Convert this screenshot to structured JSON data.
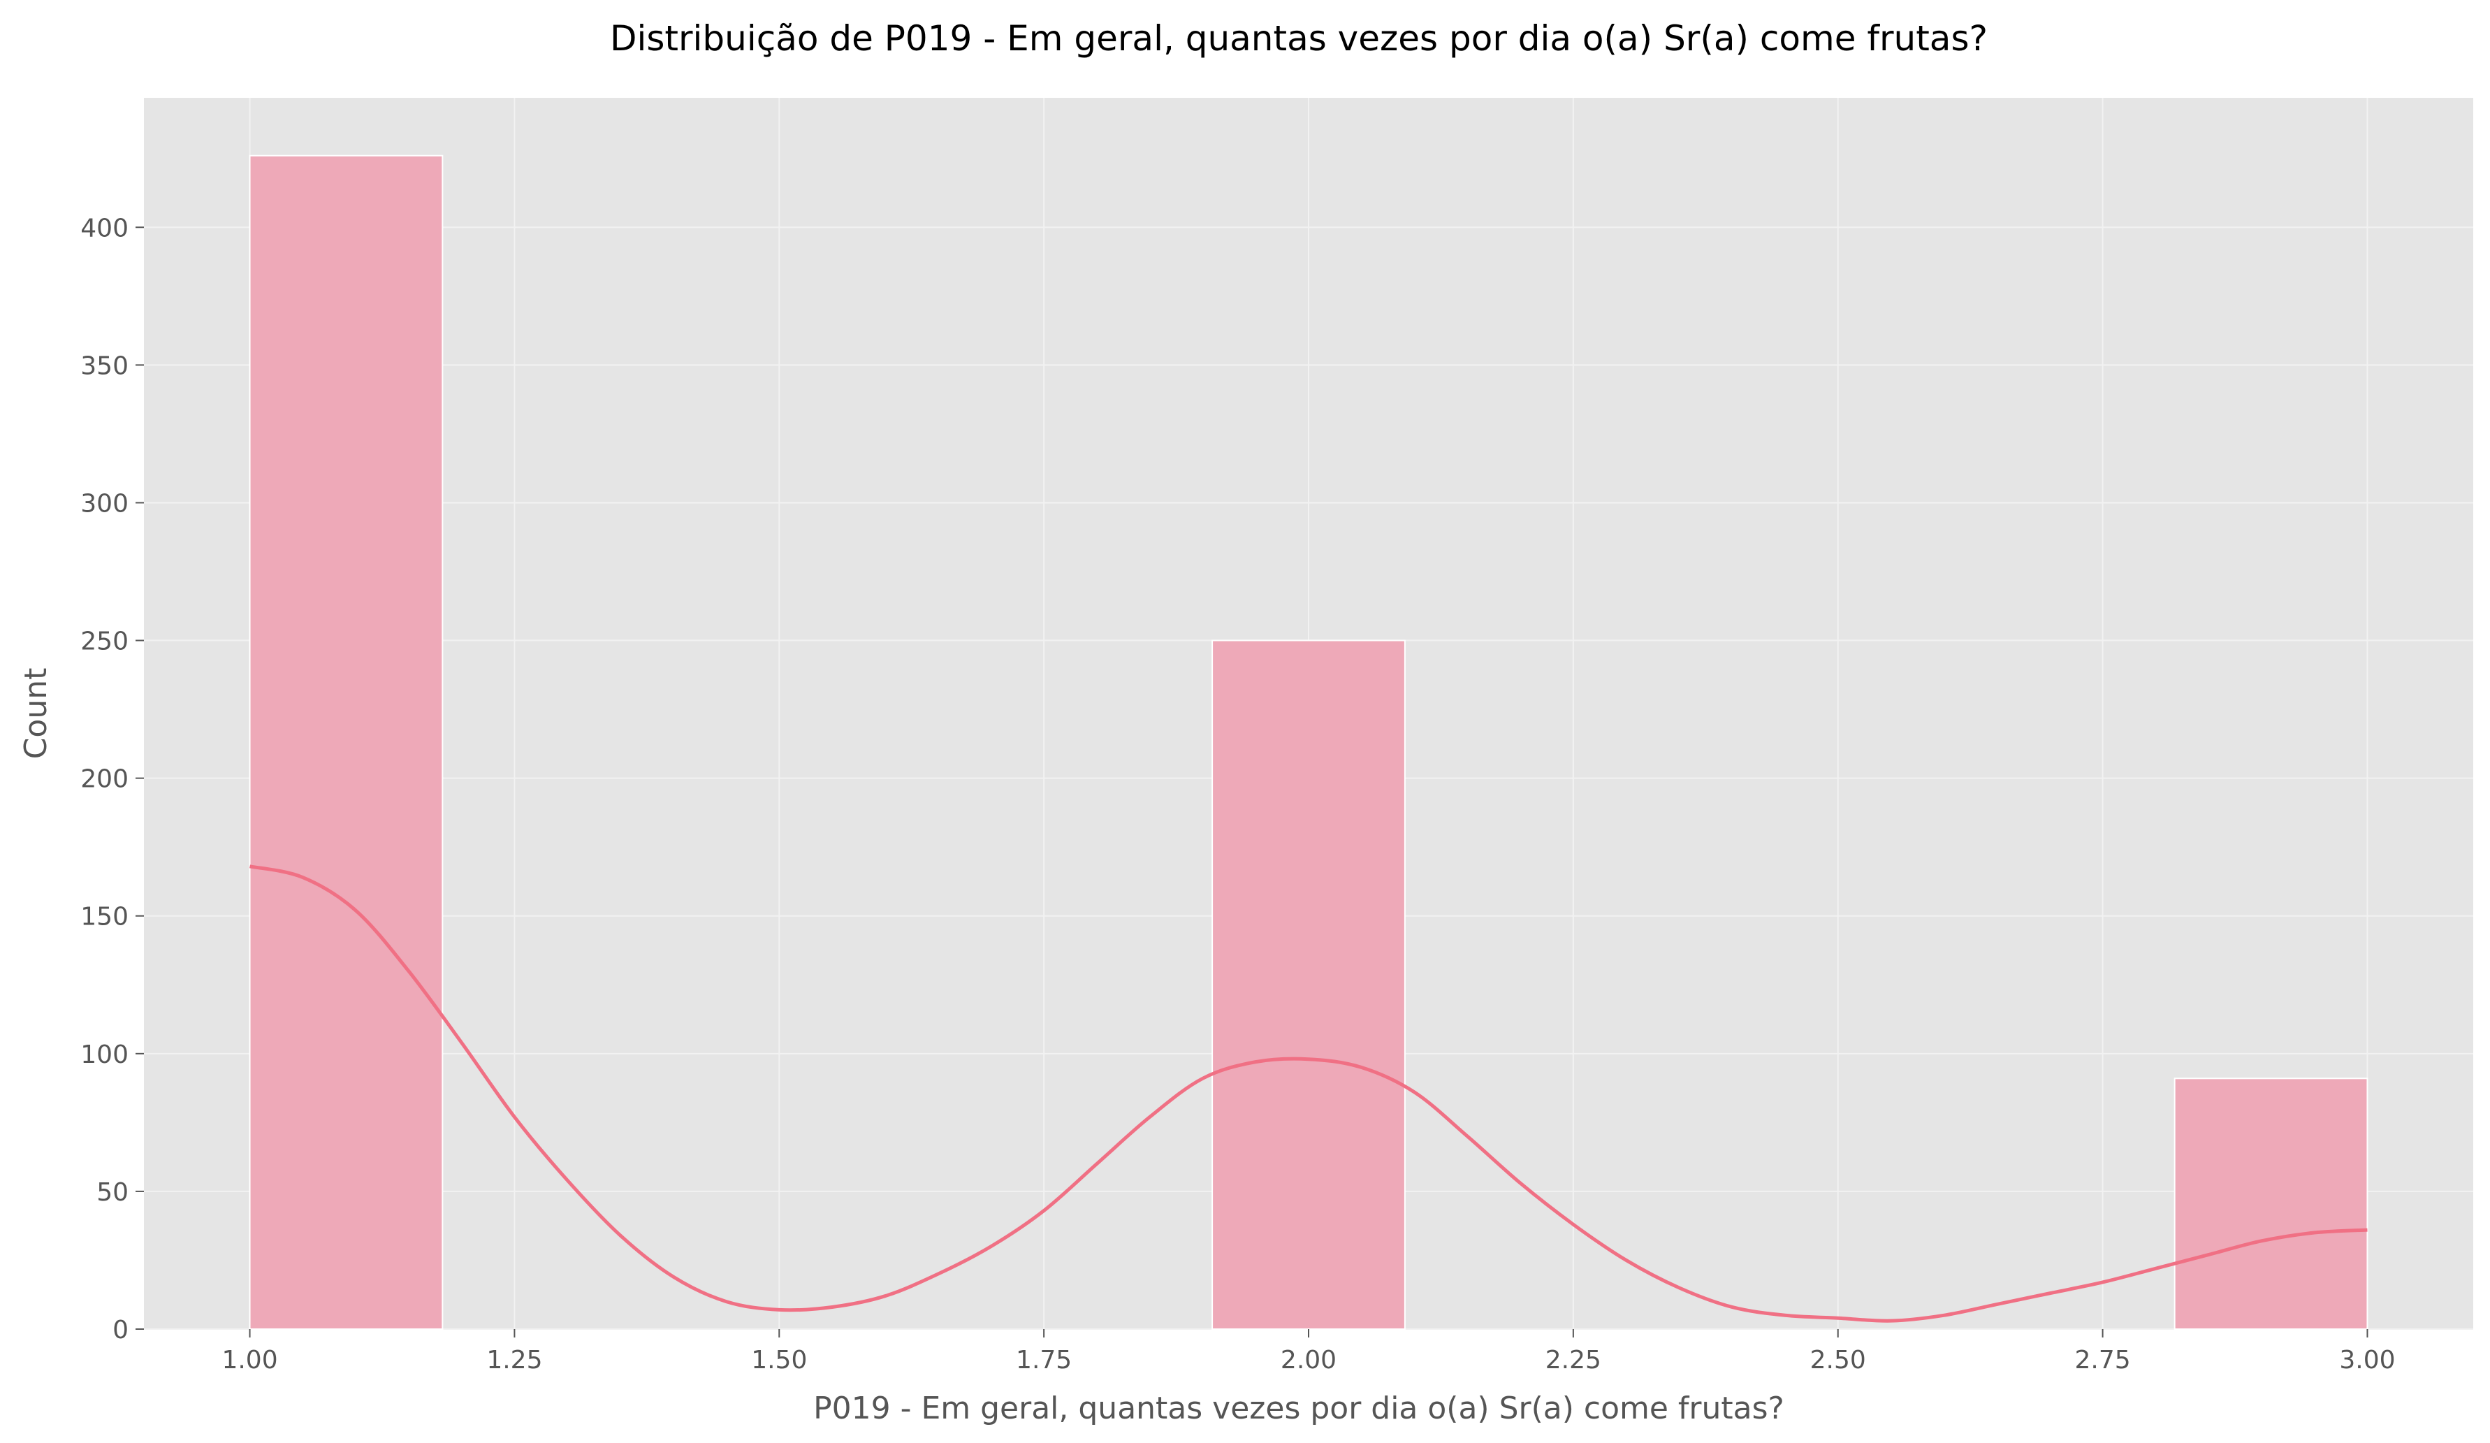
{
  "chart_data": {
    "type": "bar",
    "title": "Distribuição de P019 - Em geral, quantas vezes por dia o(a) Sr(a) come frutas?",
    "xlabel": "P019 - Em geral, quantas vezes por dia o(a) Sr(a) come frutas?",
    "ylabel": "Count",
    "xlim": [
      0.9,
      3.1
    ],
    "ylim": [
      0,
      447
    ],
    "xticks": [
      1.0,
      1.25,
      1.5,
      1.75,
      2.0,
      2.25,
      2.5,
      2.75,
      3.0
    ],
    "xtick_labels": [
      "1.00",
      "1.25",
      "1.50",
      "1.75",
      "2.00",
      "2.25",
      "2.50",
      "2.75",
      "3.00"
    ],
    "yticks": [
      0,
      50,
      100,
      150,
      200,
      250,
      300,
      350,
      400
    ],
    "ytick_labels": [
      "0",
      "50",
      "100",
      "150",
      "200",
      "250",
      "300",
      "350",
      "400"
    ],
    "bars": [
      {
        "x0": 1.0,
        "x1": 1.182,
        "value": 426
      },
      {
        "x0": 1.909,
        "x1": 2.091,
        "value": 250
      },
      {
        "x0": 2.818,
        "x1": 3.0,
        "value": 91
      }
    ],
    "kde_curve": {
      "x": [
        1.0,
        1.05,
        1.1,
        1.15,
        1.2,
        1.25,
        1.3,
        1.35,
        1.4,
        1.45,
        1.5,
        1.55,
        1.6,
        1.65,
        1.7,
        1.75,
        1.8,
        1.85,
        1.9,
        1.95,
        2.0,
        2.05,
        2.1,
        2.15,
        2.2,
        2.25,
        2.3,
        2.35,
        2.4,
        2.45,
        2.5,
        2.55,
        2.6,
        2.65,
        2.7,
        2.75,
        2.8,
        2.85,
        2.9,
        2.95,
        3.0
      ],
      "y": [
        168,
        164,
        152,
        130,
        104,
        77,
        54,
        34,
        19,
        10,
        7,
        8,
        12,
        20,
        30,
        43,
        60,
        77,
        91,
        97,
        98,
        95,
        86,
        70,
        53,
        38,
        25,
        15,
        8,
        5,
        4,
        3,
        5,
        9,
        13,
        17,
        22,
        27,
        32,
        35,
        36
      ]
    },
    "grid": true,
    "colors": {
      "bar_fill": "#eea9b8",
      "kde_line": "#f07084",
      "plot_background": "#e5e5e5",
      "grid": "#f2f2f2"
    }
  }
}
